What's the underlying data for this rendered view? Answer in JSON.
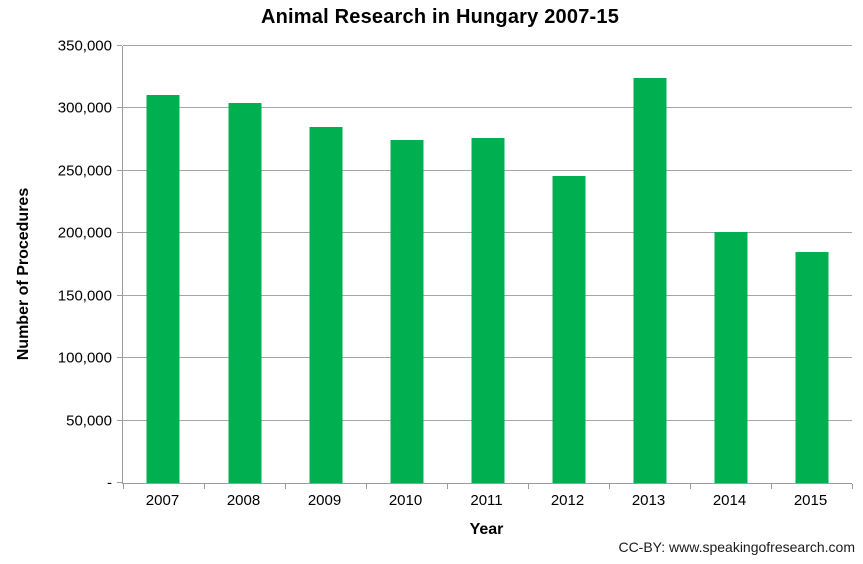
{
  "chart_data": {
    "type": "bar",
    "title": "Animal Research in Hungary 2007-15",
    "xlabel": "Year",
    "ylabel": "Number of Procedures",
    "categories": [
      "2007",
      "2008",
      "2009",
      "2010",
      "2011",
      "2012",
      "2013",
      "2014",
      "2015"
    ],
    "values": [
      311000,
      304000,
      285000,
      275000,
      276000,
      246000,
      324000,
      201000,
      185000
    ],
    "ylim": [
      0,
      350000
    ],
    "ytick_interval": 50000,
    "ytick_labels": [
      "-",
      "50,000",
      "100,000",
      "150,000",
      "200,000",
      "250,000",
      "300,000",
      "350,000"
    ],
    "grid": true,
    "legend": "none",
    "bar_color": "#00B050",
    "gridline_color": "#a6a6a6",
    "axis_color": "#9b9b9b"
  },
  "footer": {
    "credit": "CC-BY: www.speakingofresearch.com"
  }
}
